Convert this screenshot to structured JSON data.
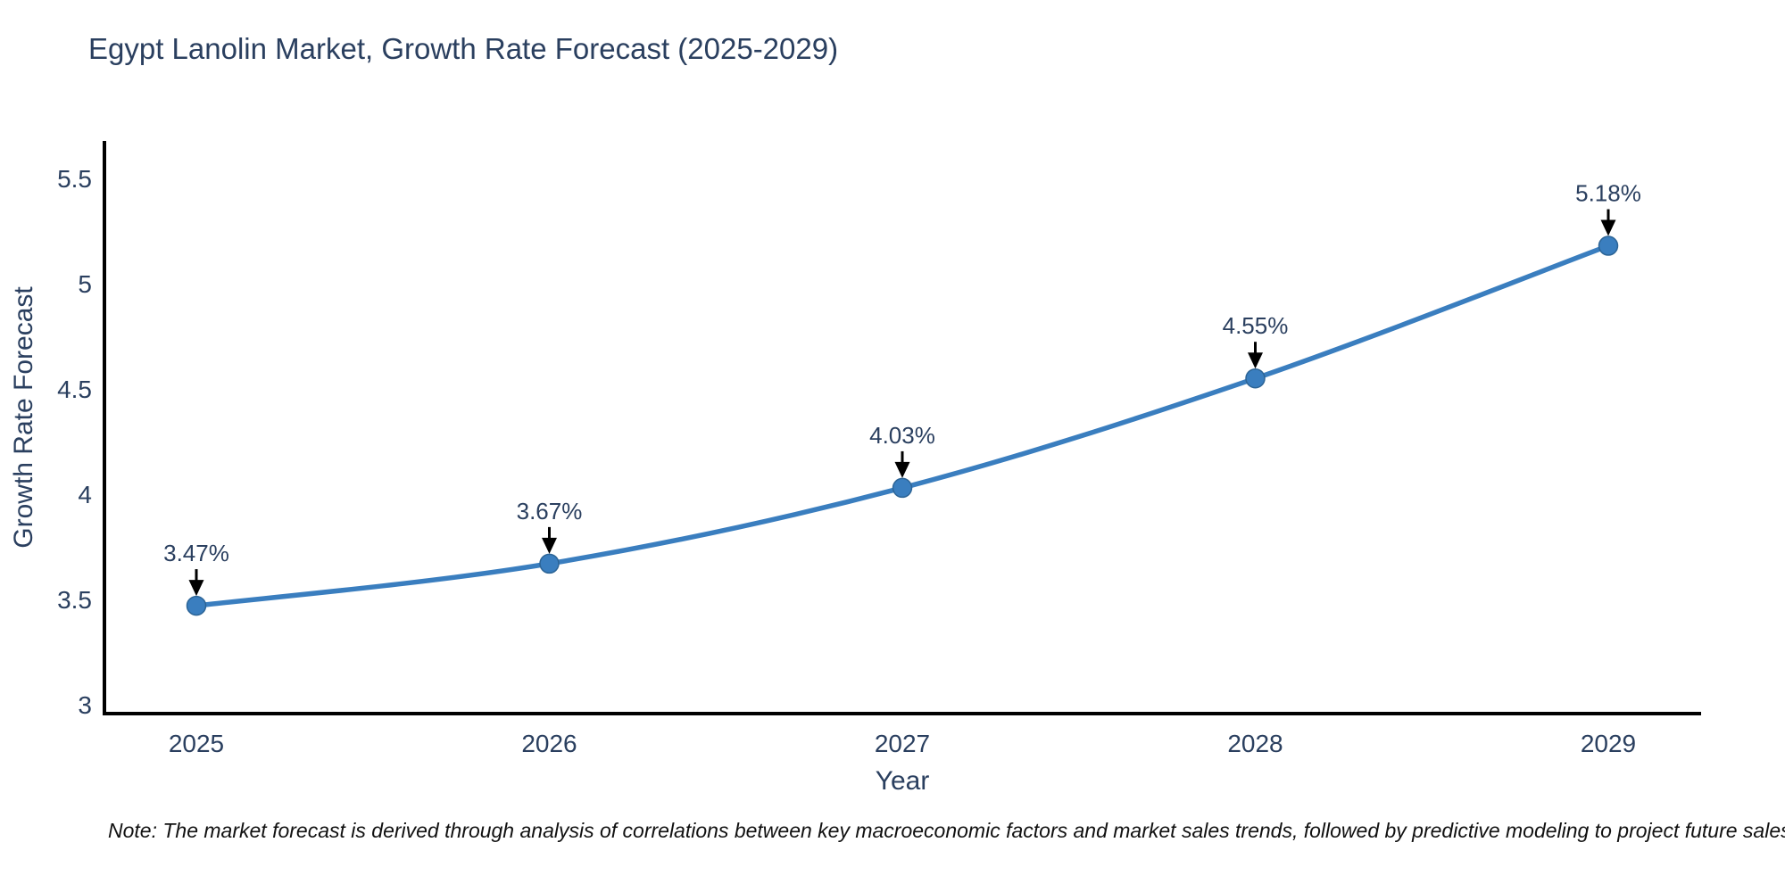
{
  "title": "Egypt Lanolin Market, Growth Rate Forecast (2025-2029)",
  "note": "Note: The market forecast is derived through analysis of correlations between key macroeconomic factors and market sales trends, followed by predictive modeling to project future sales",
  "chart_data": {
    "type": "line",
    "title": "Egypt Lanolin Market, Growth Rate Forecast (2025-2029)",
    "xlabel": "Year",
    "ylabel": "Growth Rate Forecast",
    "x": [
      "2025",
      "2026",
      "2027",
      "2028",
      "2029"
    ],
    "values": [
      3.47,
      3.67,
      4.03,
      4.55,
      5.18
    ],
    "point_labels": [
      "3.47%",
      "3.67%",
      "4.03%",
      "4.55%",
      "5.18%"
    ],
    "yticks": [
      3,
      3.5,
      4,
      4.5,
      5,
      5.5
    ],
    "ylim": [
      2.96,
      5.67
    ],
    "grid": false,
    "legend_position": "none",
    "line_smoothing": "spline",
    "annotation_style": "label-with-down-arrow",
    "colors": {
      "line": "#3a7ebf",
      "marker_fill": "#3a7ebf",
      "marker_edge": "#2c6496",
      "axis_spine": "#000000",
      "tick_text": "#2a3f5f",
      "title_text": "#2a3f5f",
      "annotation_text": "#2a3f5f",
      "arrow": "#000000",
      "note_text": "#111111",
      "background": "#ffffff"
    }
  }
}
